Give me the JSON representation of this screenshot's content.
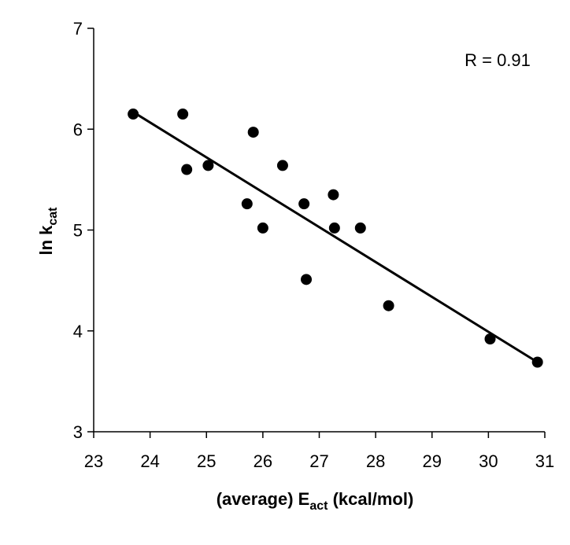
{
  "chart_data": {
    "type": "scatter",
    "title": "",
    "xlabel": {
      "main": "(average) E",
      "subscript": "act",
      "suffix": " (kcal/mol)"
    },
    "ylabel": {
      "main": "ln k",
      "subscript": "cat"
    },
    "xlim": [
      23,
      31
    ],
    "ylim": [
      3,
      7
    ],
    "x_ticks": [
      23,
      24,
      25,
      26,
      27,
      28,
      29,
      30,
      31
    ],
    "y_ticks": [
      3,
      4,
      5,
      6,
      7
    ],
    "grid": false,
    "annotation": "R = 0.91",
    "points": [
      {
        "x": 23.7,
        "y": 6.15
      },
      {
        "x": 24.58,
        "y": 6.15
      },
      {
        "x": 24.65,
        "y": 5.6
      },
      {
        "x": 25.03,
        "y": 5.64
      },
      {
        "x": 25.72,
        "y": 5.26
      },
      {
        "x": 25.83,
        "y": 5.97
      },
      {
        "x": 26.0,
        "y": 5.02
      },
      {
        "x": 26.35,
        "y": 5.64
      },
      {
        "x": 26.73,
        "y": 5.26
      },
      {
        "x": 26.77,
        "y": 4.51
      },
      {
        "x": 27.25,
        "y": 5.35
      },
      {
        "x": 27.27,
        "y": 5.02
      },
      {
        "x": 27.73,
        "y": 5.02
      },
      {
        "x": 28.23,
        "y": 4.25
      },
      {
        "x": 30.03,
        "y": 3.92
      },
      {
        "x": 30.87,
        "y": 3.69
      }
    ],
    "trendline": {
      "x": [
        23.7,
        30.87
      ],
      "y": [
        6.17,
        3.69
      ]
    }
  }
}
